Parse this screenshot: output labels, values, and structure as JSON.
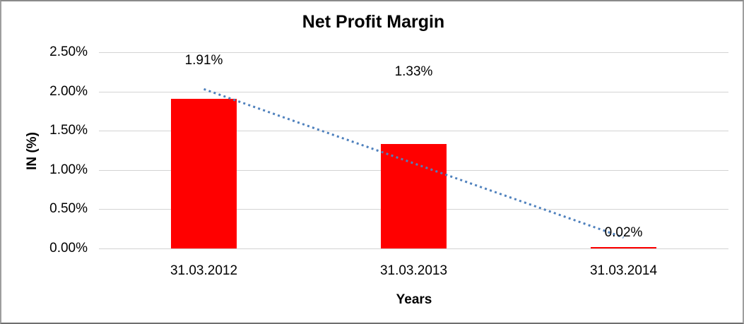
{
  "window": {
    "background": "#ffffff",
    "border_color": "#9e9e9e"
  },
  "chart_data": {
    "type": "bar",
    "title": "Net Profit Margin",
    "xlabel": "Years",
    "ylabel": "IN (%)",
    "categories": [
      "31.03.2012",
      "31.03.2013",
      "31.03.2014"
    ],
    "values": [
      1.91,
      1.33,
      0.02
    ],
    "value_labels": [
      "1.91%",
      "1.33%",
      "0.02%"
    ],
    "ylim": [
      0,
      2.5
    ],
    "ytick_step": 0.5,
    "ytick_labels": [
      "0.00%",
      "0.50%",
      "1.00%",
      "1.50%",
      "2.00%",
      "2.50%"
    ],
    "grid": true,
    "grid_color": "#d3d3d3",
    "legend": "none",
    "bar_color": "#ff0000",
    "text_color": "#000000",
    "trendline": {
      "type": "linear",
      "style": "dotted",
      "color": "#4f81bd",
      "start_value": 2.03,
      "end_value": 0.14
    }
  }
}
